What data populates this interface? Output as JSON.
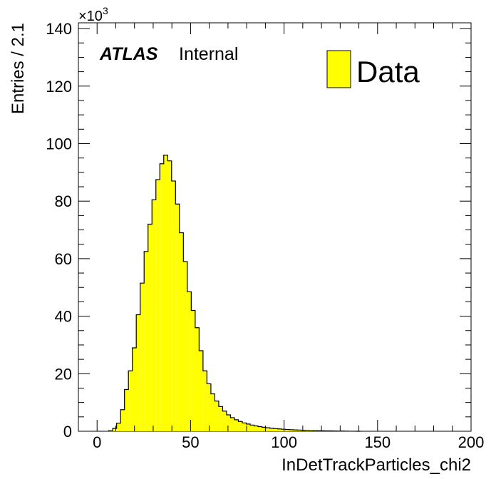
{
  "chart_data": {
    "type": "histogram",
    "xlabel": "InDetTrackParticles_chi2",
    "ylabel": "Entries / 2.1",
    "y_multiplier_label": "×10",
    "y_multiplier_exponent": "3",
    "xlim": [
      -10,
      200
    ],
    "ylim": [
      0,
      142000
    ],
    "x_ticks": [
      0,
      50,
      100,
      150,
      200
    ],
    "y_ticks": [
      0,
      20000,
      40000,
      60000,
      80000,
      100000,
      120000,
      140000
    ],
    "x_tick_labels": [
      "0",
      "50",
      "100",
      "150",
      "200"
    ],
    "y_tick_labels": [
      "0",
      "20",
      "40",
      "60",
      "80",
      "100",
      "120",
      "140"
    ],
    "bin_start": 6.25,
    "bin_width": 2.1,
    "values": [
      200,
      1000,
      2800,
      7500,
      14500,
      21000,
      29000,
      40500,
      51500,
      62500,
      72000,
      80500,
      87500,
      93000,
      96000,
      94000,
      87000,
      79000,
      69000,
      59000,
      48500,
      42000,
      36000,
      28000,
      21000,
      16500,
      13000,
      10500,
      8600,
      7000,
      5700,
      4700,
      4000,
      3400,
      2900,
      2500,
      2150,
      1850,
      1600,
      1400,
      1200,
      1050,
      920,
      800,
      700,
      610,
      530,
      460,
      400,
      350,
      300,
      260,
      220,
      190,
      160,
      140,
      120,
      100,
      80,
      60,
      40,
      20,
      10,
      5
    ],
    "series": [
      {
        "name": "Data",
        "color": "#ffff00",
        "edge_color": "#000000"
      }
    ],
    "legend_position": "top-right",
    "annotation": {
      "experiment": "ATLAS",
      "status": "Internal"
    },
    "grid": false
  }
}
